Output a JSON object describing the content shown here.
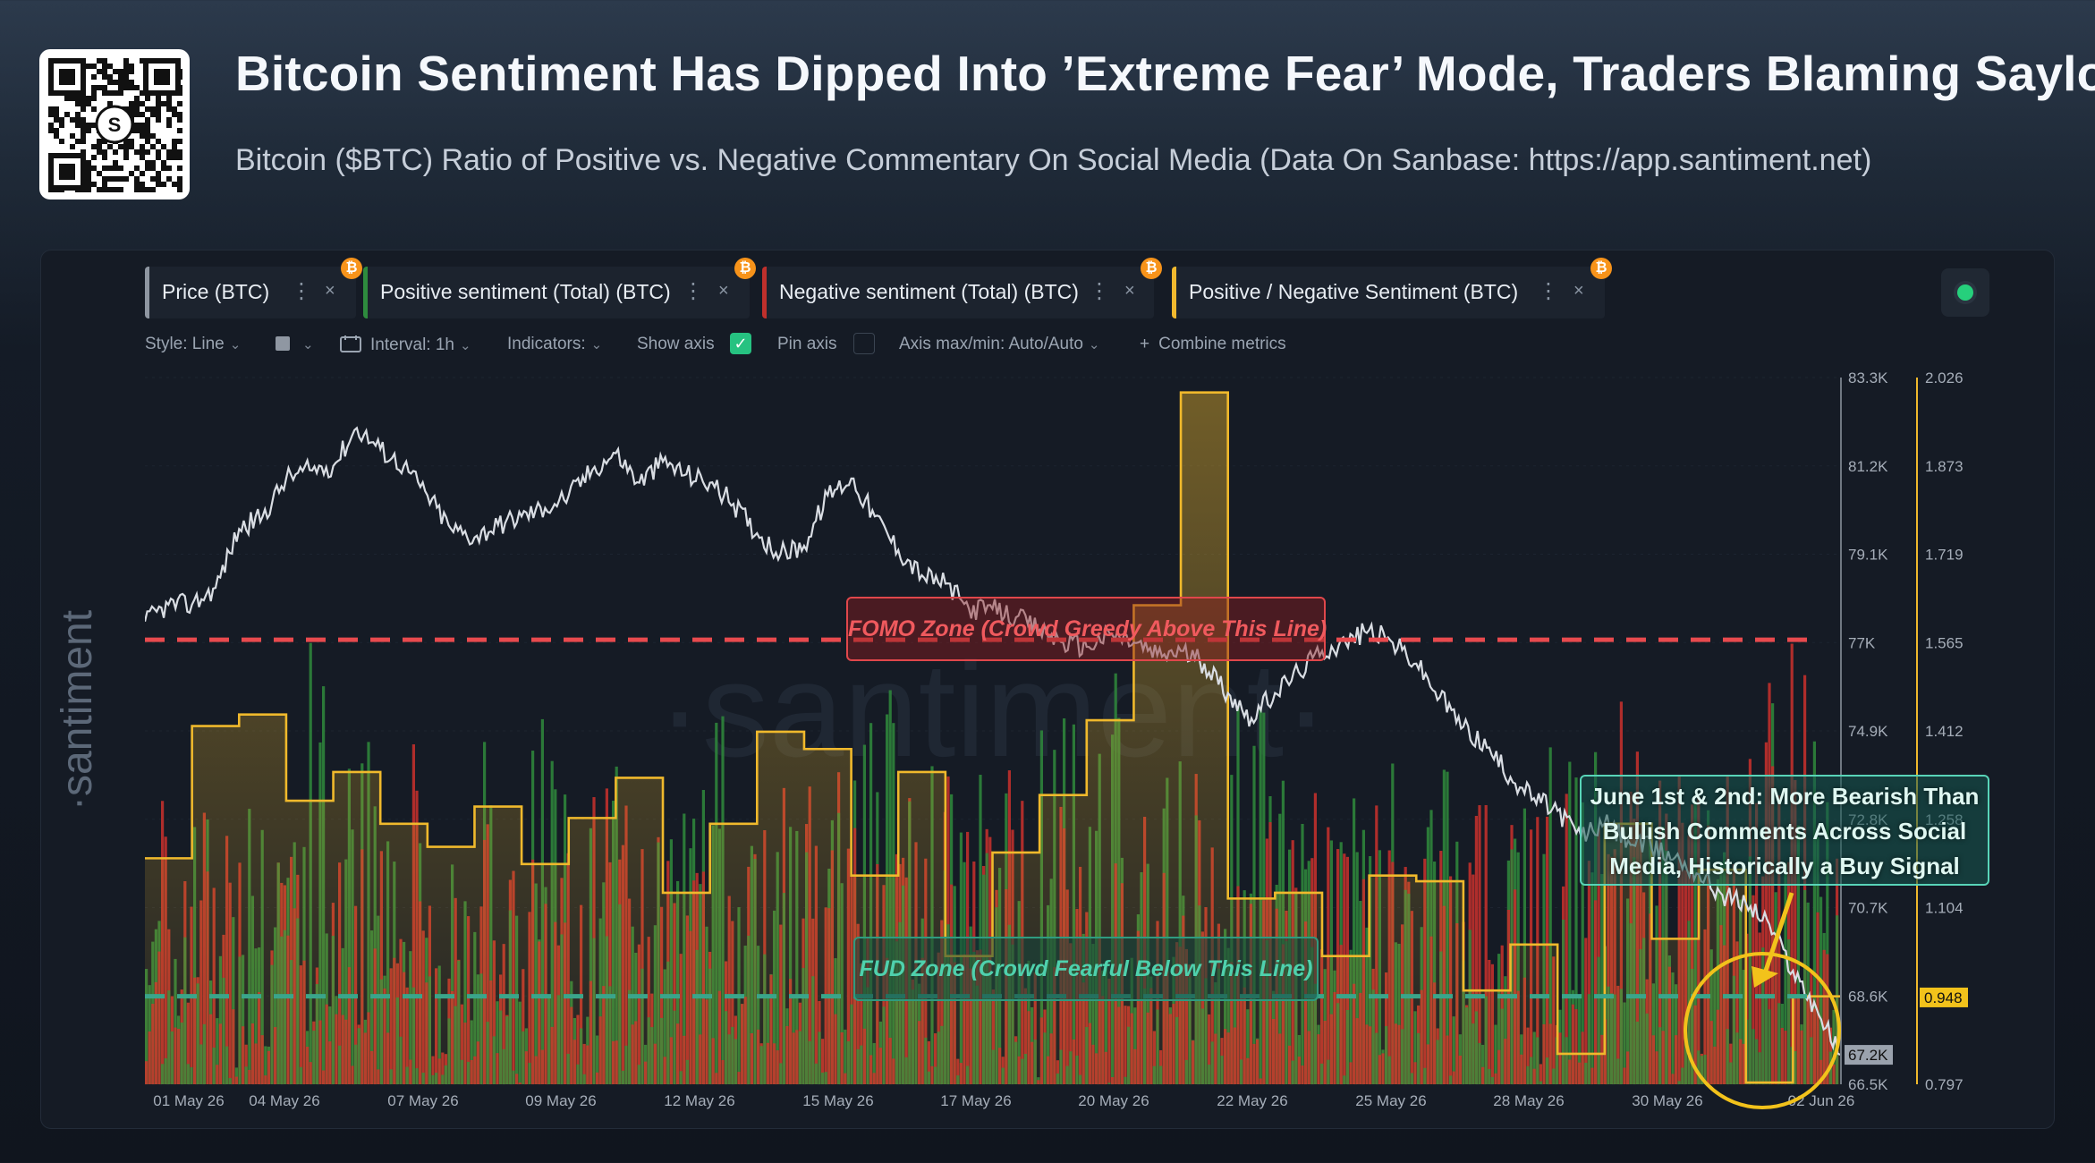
{
  "header": {
    "title": "Bitcoin Sentiment Has Dipped Into ’Extreme Fear’ Mode, Traders Blaming Saylor",
    "subtitle": "Bitcoin ($BTC) Ratio of Positive vs. Negative Commentary On Social Media (Data On Sanbase: https://app.santiment.net)",
    "qr_logo_letter": "S"
  },
  "metric_tabs": [
    {
      "label": "Price (BTC)",
      "color": "#8e96a1"
    },
    {
      "label": "Positive sentiment (Total) (BTC)",
      "color": "#2e8b3e"
    },
    {
      "label": "Negative sentiment (Total) (BTC)",
      "color": "#c0302c"
    },
    {
      "label": "Positive / Negative Sentiment (BTC)",
      "color": "#f2b92e"
    }
  ],
  "icons": {
    "more": "⋮",
    "close": "×",
    "coin": "₿",
    "check": "✓",
    "plus": "+",
    "chevron": "⌄"
  },
  "toolbar": {
    "style": "Style: Line",
    "interval": "Interval: 1h",
    "indicators": "Indicators:",
    "show_axis": "Show axis",
    "pin_axis": "Pin axis",
    "axis_maxmin": "Axis max/min: Auto/Auto",
    "combine": "Combine metrics"
  },
  "watermark": "·santiment·",
  "annotations": {
    "fomo": "FOMO Zone (Crowd Greedy Above This Line)",
    "fud": "FUD Zone (Crowd Fearful Below This Line)",
    "june_line1": "June 1st & 2nd: More Bearish Than",
    "june_line2": "Bullish Comments Across Social",
    "june_line3": "Media, Historically a Buy Signal"
  },
  "colors": {
    "price_line": "#d9dde3",
    "positive_bars": "#2f8a3c",
    "negative_bars": "#c0302c",
    "ratio_line": "#f0b92c",
    "fomo_line": "#e84a4e",
    "fud_line": "#3aa58a",
    "highlight": "#f2c21b"
  },
  "chart_data": {
    "type": "line",
    "x_ticks": [
      "01 May 26",
      "04 May 26",
      "07 May 26",
      "09 May 26",
      "12 May 26",
      "15 May 26",
      "17 May 26",
      "20 May 26",
      "22 May 26",
      "25 May 26",
      "28 May 26",
      "30 May 26",
      "02 Jun 26"
    ],
    "price_axis": {
      "ticks": [
        "83.3K",
        "81.2K",
        "79.1K",
        "77K",
        "74.9K",
        "72.8K",
        "70.7K",
        "68.6K",
        "66.5K"
      ],
      "ylim": [
        66500,
        83300
      ],
      "current_label": "67.2K"
    },
    "ratio_axis": {
      "ticks": [
        "2.026",
        "1.873",
        "1.719",
        "1.565",
        "1.412",
        "1.258",
        "1.104",
        "0.948",
        "0.797"
      ],
      "ylim": [
        0.797,
        2.026
      ],
      "current_label": "0.948"
    },
    "fomo_threshold": 1.57,
    "fud_threshold": 0.95,
    "series": [
      {
        "name": "Price (BTC)",
        "axis": "price",
        "points": [
          [
            1,
            77500
          ],
          [
            1.5,
            77900
          ],
          [
            2,
            77900
          ],
          [
            2.5,
            78300
          ],
          [
            3,
            79700
          ],
          [
            3.5,
            80000
          ],
          [
            4,
            80900
          ],
          [
            4.5,
            81100
          ],
          [
            5,
            81200
          ],
          [
            5.5,
            82100
          ],
          [
            6,
            81600
          ],
          [
            6.5,
            81200
          ],
          [
            7,
            80500
          ],
          [
            7.5,
            79700
          ],
          [
            8,
            79500
          ],
          [
            8.5,
            79800
          ],
          [
            9,
            80000
          ],
          [
            9.5,
            80200
          ],
          [
            10,
            80500
          ],
          [
            10.5,
            81100
          ],
          [
            11,
            81500
          ],
          [
            11.5,
            80800
          ],
          [
            12,
            81300
          ],
          [
            12.5,
            81000
          ],
          [
            13,
            80800
          ],
          [
            13.5,
            80300
          ],
          [
            14,
            79600
          ],
          [
            14.5,
            79100
          ],
          [
            15,
            79300
          ],
          [
            15.5,
            80500
          ],
          [
            16,
            80900
          ],
          [
            16.5,
            80000
          ],
          [
            17,
            79200
          ],
          [
            17.5,
            78600
          ],
          [
            18,
            78400
          ],
          [
            18.5,
            77800
          ],
          [
            19,
            77800
          ],
          [
            19.5,
            77600
          ],
          [
            20,
            77300
          ],
          [
            20.5,
            77000
          ],
          [
            21,
            76900
          ],
          [
            21.5,
            77200
          ],
          [
            22,
            77000
          ],
          [
            22.5,
            76700
          ],
          [
            23,
            76800
          ],
          [
            23.5,
            76500
          ],
          [
            24,
            75800
          ],
          [
            24.5,
            75200
          ],
          [
            25,
            75800
          ],
          [
            25.5,
            76300
          ],
          [
            26,
            76800
          ],
          [
            26.5,
            77000
          ],
          [
            27,
            77300
          ],
          [
            27.5,
            77000
          ],
          [
            28,
            76500
          ],
          [
            28.5,
            75700
          ],
          [
            29,
            75000
          ],
          [
            29.5,
            74500
          ],
          [
            30,
            73800
          ],
          [
            30.5,
            73300
          ],
          [
            31,
            73000
          ],
          [
            31.5,
            72400
          ],
          [
            32,
            72700
          ],
          [
            32.5,
            72300
          ],
          [
            33,
            72100
          ],
          [
            33.5,
            71900
          ],
          [
            34,
            71500
          ],
          [
            34.5,
            71000
          ],
          [
            35,
            70800
          ],
          [
            35.5,
            70300
          ],
          [
            36,
            69200
          ],
          [
            36.5,
            68300
          ],
          [
            37,
            67200
          ]
        ]
      },
      {
        "name": "Positive / Negative Sentiment (BTC)",
        "axis": "ratio",
        "points": [
          [
            1,
            1.19
          ],
          [
            2,
            1.19
          ],
          [
            2,
            1.42
          ],
          [
            3,
            1.42
          ],
          [
            3,
            1.44
          ],
          [
            4,
            1.44
          ],
          [
            4,
            1.29
          ],
          [
            5,
            1.29
          ],
          [
            5,
            1.34
          ],
          [
            6,
            1.34
          ],
          [
            6,
            1.25
          ],
          [
            7,
            1.25
          ],
          [
            7,
            1.21
          ],
          [
            8,
            1.21
          ],
          [
            8,
            1.28
          ],
          [
            9,
            1.28
          ],
          [
            9,
            1.18
          ],
          [
            10,
            1.18
          ],
          [
            10,
            1.26
          ],
          [
            11,
            1.26
          ],
          [
            11,
            1.33
          ],
          [
            12,
            1.33
          ],
          [
            12,
            1.13
          ],
          [
            13,
            1.13
          ],
          [
            13,
            1.25
          ],
          [
            14,
            1.25
          ],
          [
            14,
            1.41
          ],
          [
            15,
            1.41
          ],
          [
            15,
            1.38
          ],
          [
            16,
            1.38
          ],
          [
            16,
            1.16
          ],
          [
            17,
            1.16
          ],
          [
            17,
            1.34
          ],
          [
            18,
            1.34
          ],
          [
            18,
            1.02
          ],
          [
            19,
            1.02
          ],
          [
            19,
            1.2
          ],
          [
            20,
            1.2
          ],
          [
            20,
            1.3
          ],
          [
            21,
            1.3
          ],
          [
            21,
            1.43
          ],
          [
            22,
            1.43
          ],
          [
            22,
            1.63
          ],
          [
            23,
            1.63
          ],
          [
            23,
            2.0
          ],
          [
            24,
            2.0
          ],
          [
            24,
            1.12
          ],
          [
            25,
            1.12
          ],
          [
            25,
            1.13
          ],
          [
            26,
            1.13
          ],
          [
            26,
            1.02
          ],
          [
            27,
            1.02
          ],
          [
            27,
            1.16
          ],
          [
            28,
            1.16
          ],
          [
            28,
            1.15
          ],
          [
            29,
            1.15
          ],
          [
            29,
            0.96
          ],
          [
            30,
            0.96
          ],
          [
            30,
            1.04
          ],
          [
            31,
            1.04
          ],
          [
            31,
            0.85
          ],
          [
            32,
            0.85
          ],
          [
            32,
            1.25
          ],
          [
            33,
            1.25
          ],
          [
            33,
            1.05
          ],
          [
            34,
            1.05
          ],
          [
            34,
            1.17
          ],
          [
            35,
            1.17
          ],
          [
            35,
            0.8
          ],
          [
            36,
            0.8
          ],
          [
            36,
            0.95
          ],
          [
            37,
            0.95
          ]
        ]
      },
      {
        "name": "Positive sentiment (Total) (BTC)",
        "axis": "volume",
        "values": [
          0.62,
          0.55,
          0.82,
          0.94,
          0.71,
          0.58,
          0.49,
          0.69,
          0.73,
          0.61,
          0.52,
          0.66,
          0.77,
          0.59,
          0.54,
          0.81,
          0.67,
          0.63,
          0.57,
          0.72,
          0.85,
          0.61,
          0.56,
          0.79,
          0.66,
          0.58,
          0.7,
          0.64,
          0.6,
          0.74,
          0.65,
          0.52,
          0.63,
          0.71,
          0.78,
          0.86,
          0.73
        ]
      },
      {
        "name": "Negative sentiment (Total) (BTC)",
        "axis": "volume",
        "values": [
          0.58,
          0.63,
          0.49,
          0.47,
          0.64,
          0.71,
          0.57,
          0.59,
          0.52,
          0.68,
          0.74,
          0.58,
          0.55,
          0.61,
          0.69,
          0.53,
          0.62,
          0.66,
          0.73,
          0.57,
          0.51,
          0.66,
          0.7,
          0.53,
          0.63,
          0.68,
          0.59,
          0.62,
          0.7,
          0.58,
          0.66,
          0.79,
          0.67,
          0.64,
          0.97,
          0.99,
          0.82
        ]
      }
    ]
  }
}
